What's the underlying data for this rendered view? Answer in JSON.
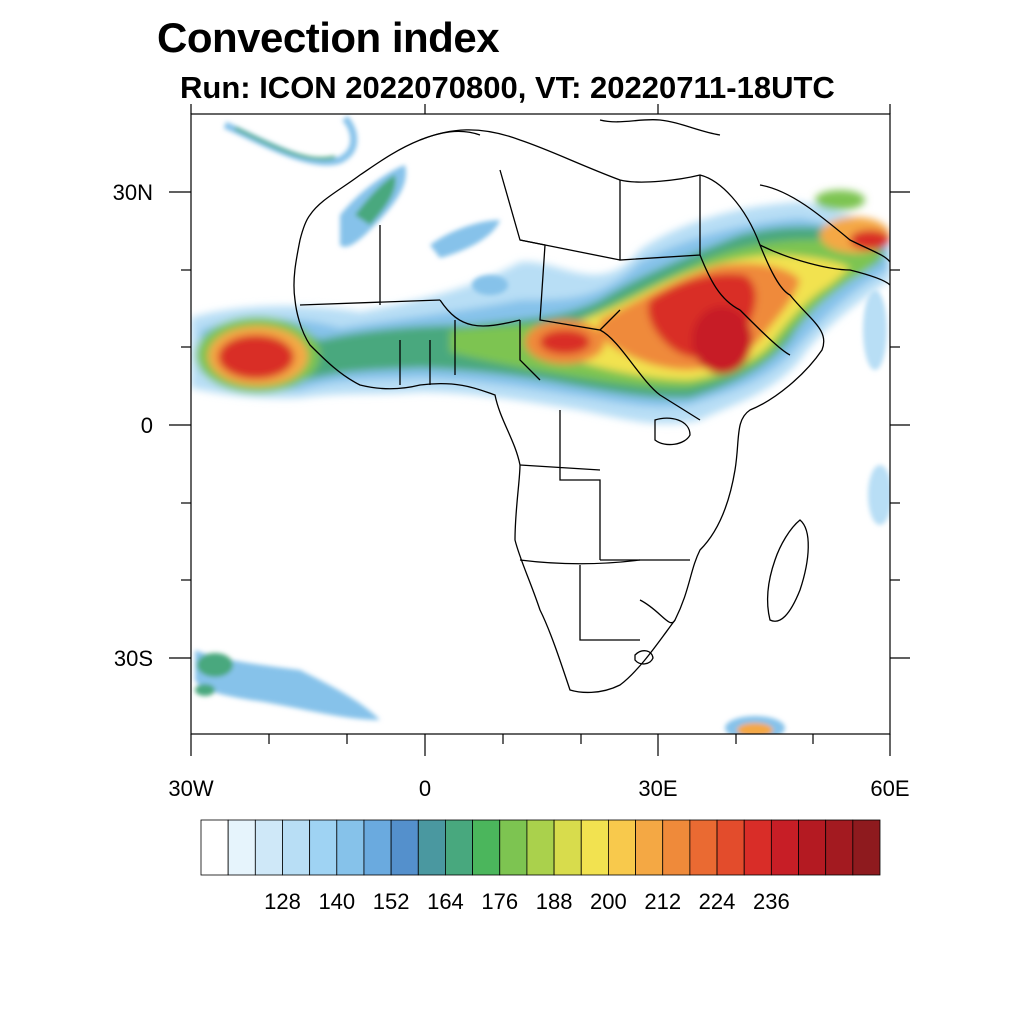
{
  "title": "Convection index",
  "subtitle": "Run: ICON 2022070800,  VT: 20220711-18UTC",
  "map": {
    "region": "Africa",
    "lon_range": [
      -30,
      60
    ],
    "lat_range": [
      -40,
      40
    ],
    "lat_labels": [
      "30N",
      "0",
      "30S"
    ],
    "lon_labels": [
      "30W",
      "0",
      "30E",
      "60E"
    ]
  },
  "colorbar": {
    "colors": [
      "#ffffff",
      "#e6f4fc",
      "#cfe8f8",
      "#b8def5",
      "#9fd3f3",
      "#86c2ea",
      "#6aaadf",
      "#5490cc",
      "#4a98a0",
      "#48a87e",
      "#4bb65c",
      "#7dc451",
      "#aad14c",
      "#d8dc4c",
      "#f2e250",
      "#f8c94c",
      "#f4a844",
      "#ef8a3a",
      "#ea6a32",
      "#e34c2c",
      "#d92d28",
      "#c71e26",
      "#b41a22",
      "#a31a20",
      "#8e1a1e"
    ],
    "tick_labels": [
      "128",
      "140",
      "152",
      "164",
      "176",
      "188",
      "200",
      "212",
      "224",
      "236"
    ]
  }
}
